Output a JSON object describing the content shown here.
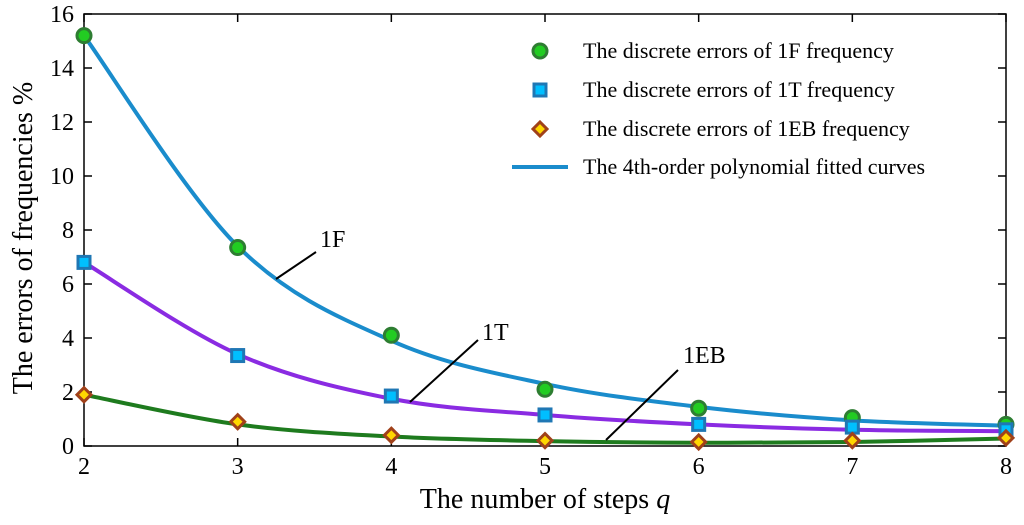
{
  "chart_data": {
    "type": "line",
    "xlabel_text": "The number of steps ",
    "xlabel_var": "q",
    "ylabel": "The errors of frequencies %",
    "xlim": [
      2,
      8
    ],
    "ylim": [
      0,
      16
    ],
    "xticks": [
      2,
      3,
      4,
      5,
      6,
      7,
      8
    ],
    "yticks": [
      0,
      2,
      4,
      6,
      8,
      10,
      12,
      14,
      16
    ],
    "grid": false,
    "legend_position": "top-right",
    "series": [
      {
        "name": "The discrete errors of 1F frequency",
        "marker": "circle",
        "marker_color": "#22cc22",
        "marker_edge": "#2e7d32",
        "x": [
          2,
          3,
          4,
          5,
          6,
          7,
          8
        ],
        "y": [
          15.2,
          7.35,
          4.1,
          2.1,
          1.4,
          1.05,
          0.8
        ]
      },
      {
        "name": "The discrete errors of 1T frequency",
        "marker": "square",
        "marker_color": "#00bfff",
        "marker_edge": "#1f77b4",
        "x": [
          2,
          3,
          4,
          5,
          6,
          7,
          8
        ],
        "y": [
          6.8,
          3.35,
          1.85,
          1.15,
          0.8,
          0.7,
          0.6
        ]
      },
      {
        "name": "The discrete errors of 1EB frequency",
        "marker": "diamond",
        "marker_color": "#ffd700",
        "marker_edge": "#a0411a",
        "x": [
          2,
          3,
          4,
          5,
          6,
          7,
          8
        ],
        "y": [
          1.9,
          0.9,
          0.4,
          0.2,
          0.15,
          0.2,
          0.3
        ]
      }
    ],
    "fitted_curves": {
      "name": "The 4th-order polynomial fitted curves",
      "curves": [
        {
          "label": "1F",
          "color": "#1a8ccc",
          "x": [
            2,
            3,
            4,
            5,
            6,
            7,
            8
          ],
          "y": [
            15.2,
            7.4,
            3.9,
            2.3,
            1.45,
            0.95,
            0.75
          ]
        },
        {
          "label": "1T",
          "color": "#8a2be2",
          "x": [
            2,
            3,
            4,
            5,
            6,
            7,
            8
          ],
          "y": [
            6.8,
            3.4,
            1.75,
            1.15,
            0.8,
            0.6,
            0.55
          ]
        },
        {
          "label": "1EB",
          "color": "#1e7b1e",
          "x": [
            2,
            3,
            4,
            5,
            6,
            7,
            8
          ],
          "y": [
            1.9,
            0.8,
            0.35,
            0.18,
            0.12,
            0.15,
            0.28
          ]
        }
      ]
    },
    "annotations": [
      "1F",
      "1T",
      "1EB"
    ]
  }
}
